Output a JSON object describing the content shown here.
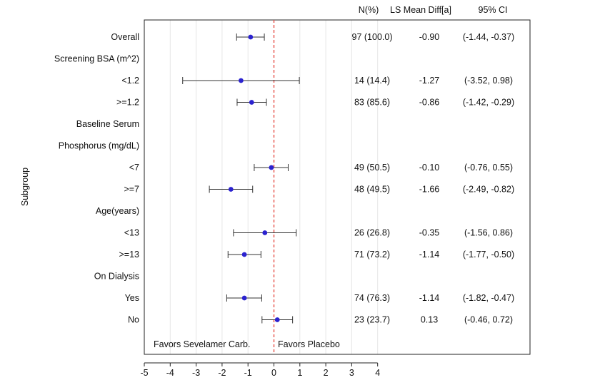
{
  "chart_data": {
    "type": "forest",
    "ylabel": "Subgroup",
    "xlim": [
      -5,
      4
    ],
    "x_ticks": [
      "-5",
      "-4",
      "-3",
      "-2",
      "-1",
      "0",
      "1",
      "2",
      "3",
      "4"
    ],
    "reference_x": 0,
    "grid": "vertical",
    "headers": {
      "n_pct": "N(%)",
      "ls_mean_diff": "LS Mean Diff[a]",
      "ci": "95% CI"
    },
    "annotations": {
      "left": "Favors Sevelamer Carb.",
      "right": "Favors Placebo"
    },
    "rows": [
      {
        "label": "Overall",
        "est": -0.9,
        "lo": -1.44,
        "hi": -0.37,
        "n_pct": "97 (100.0)",
        "diff": "-0.90",
        "ci": "(-1.44, -0.37)"
      },
      {
        "label": "Screening BSA (m^2)"
      },
      {
        "label": "<1.2",
        "est": -1.27,
        "lo": -3.52,
        "hi": 0.98,
        "n_pct": "14 (14.4)",
        "diff": "-1.27",
        "ci": "(-3.52, 0.98)"
      },
      {
        "label": ">=1.2",
        "est": -0.86,
        "lo": -1.42,
        "hi": -0.29,
        "n_pct": "83 (85.6)",
        "diff": "-0.86",
        "ci": "(-1.42, -0.29)"
      },
      {
        "label": "Baseline Serum"
      },
      {
        "label": "Phosphorus (mg/dL)"
      },
      {
        "label": "<7",
        "est": -0.1,
        "lo": -0.76,
        "hi": 0.55,
        "n_pct": "49 (50.5)",
        "diff": "-0.10",
        "ci": "(-0.76, 0.55)"
      },
      {
        "label": ">=7",
        "est": -1.66,
        "lo": -2.49,
        "hi": -0.82,
        "n_pct": "48 (49.5)",
        "diff": "-1.66",
        "ci": "(-2.49, -0.82)"
      },
      {
        "label": "Age(years)"
      },
      {
        "label": "<13",
        "est": -0.35,
        "lo": -1.56,
        "hi": 0.86,
        "n_pct": "26 (26.8)",
        "diff": "-0.35",
        "ci": "(-1.56, 0.86)"
      },
      {
        "label": ">=13",
        "est": -1.14,
        "lo": -1.77,
        "hi": -0.5,
        "n_pct": "71 (73.2)",
        "diff": "-1.14",
        "ci": "(-1.77, -0.50)"
      },
      {
        "label": "On Dialysis"
      },
      {
        "label": "Yes",
        "est": -1.14,
        "lo": -1.82,
        "hi": -0.47,
        "n_pct": "74 (76.3)",
        "diff": "-1.14",
        "ci": "(-1.82, -0.47)"
      },
      {
        "label": "No",
        "est": 0.13,
        "lo": -0.46,
        "hi": 0.72,
        "n_pct": "23 (23.7)",
        "diff": "0.13",
        "ci": "(-0.46, 0.72)"
      }
    ],
    "colors": {
      "point": "#2b22cf",
      "reference_line": "#e8504a",
      "ci_line": "#333333"
    }
  }
}
